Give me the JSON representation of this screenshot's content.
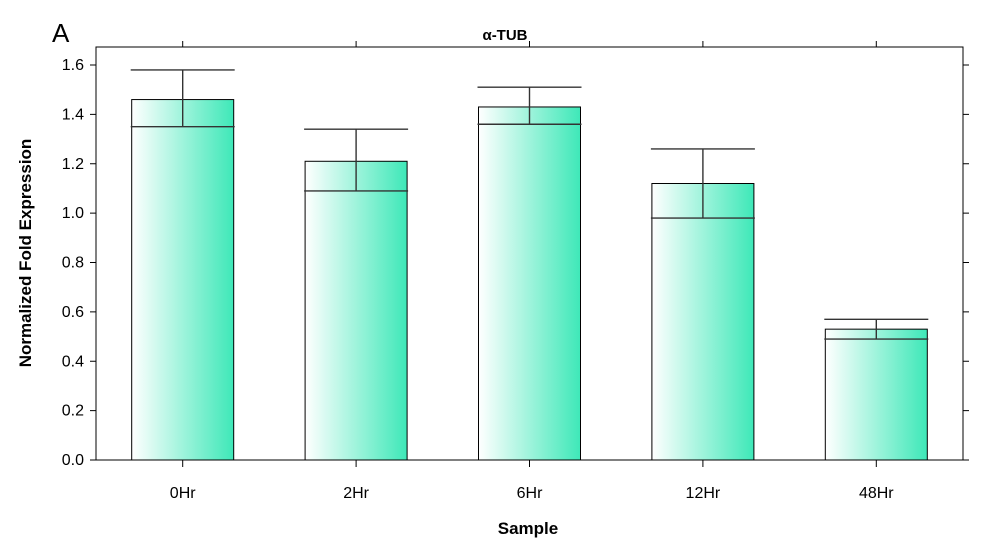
{
  "panel_letter": "A",
  "chart_data": {
    "type": "bar",
    "title": "α-TUB",
    "xlabel": "Sample",
    "ylabel": "Normalized Fold Expression",
    "categories": [
      "0Hr",
      "2Hr",
      "6Hr",
      "12Hr",
      "48Hr"
    ],
    "values": [
      1.46,
      1.21,
      1.43,
      1.12,
      0.53
    ],
    "error_upper": [
      1.58,
      1.34,
      1.51,
      1.26,
      0.57
    ],
    "error_lower": [
      1.35,
      1.09,
      1.36,
      0.98,
      0.49
    ],
    "ylim": [
      0,
      1.6
    ],
    "yticks": [
      "0.0",
      "0.2",
      "0.4",
      "0.6",
      "0.8",
      "1.0",
      "1.2",
      "1.4",
      "1.6"
    ],
    "grid": false,
    "colors": {
      "bar_light": "#ffffff",
      "bar_dark": "#3ee8b8",
      "edge": "#000000"
    }
  }
}
